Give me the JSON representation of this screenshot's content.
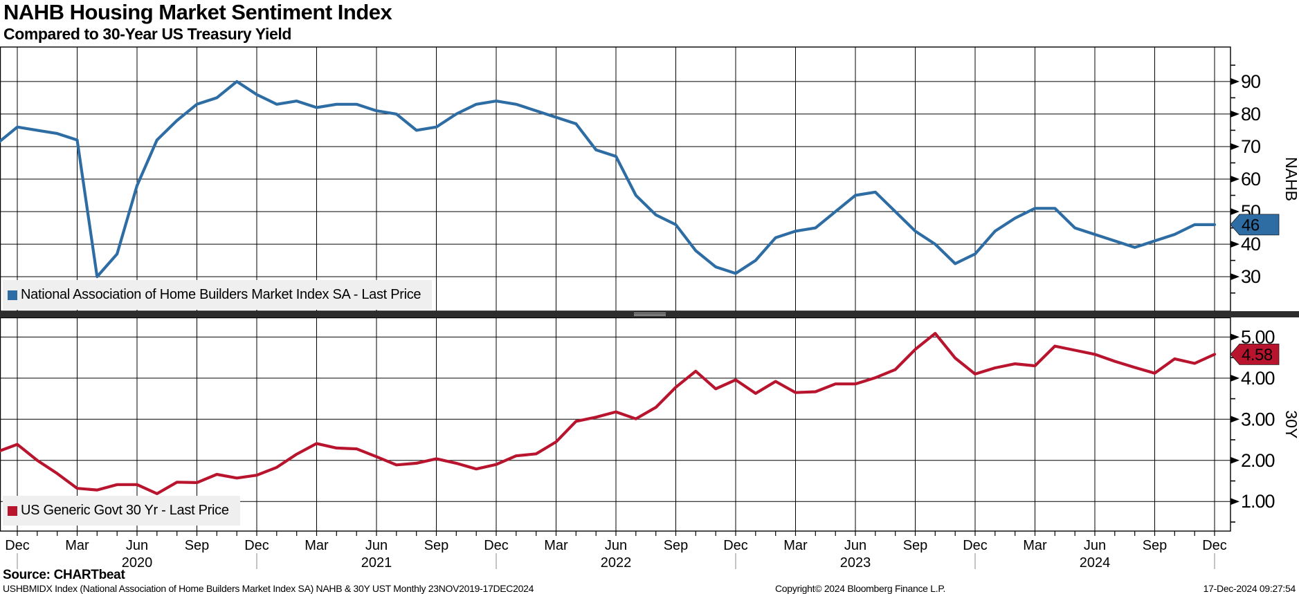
{
  "header": {
    "title": "NAHB Housing Market Sentiment Index",
    "subtitle": "Compared to 30-Year US Treasury Yield"
  },
  "chart_data": [
    {
      "type": "line",
      "panel": "top",
      "legend": "National Association of Home Builders Market Index SA - Last Price",
      "axis_title": "NAHB",
      "color": "#2e6da4",
      "last_label": "46",
      "frequency": "Monthly",
      "x_start": "Nov 2019",
      "x_end": "Dec 2024",
      "ylim": [
        19.4,
        100.6
      ],
      "yticks": [
        {
          "v": 30,
          "label": "30"
        },
        {
          "v": 40,
          "label": "40"
        },
        {
          "v": 50,
          "label": "50"
        },
        {
          "v": 60,
          "label": "60"
        },
        {
          "v": 70,
          "label": "70"
        },
        {
          "v": 80,
          "label": "80"
        },
        {
          "v": 90,
          "label": "90"
        }
      ],
      "minor_ticks": [
        25,
        35,
        45,
        55,
        65,
        75,
        85,
        95
      ],
      "values": [
        71,
        76,
        75,
        74,
        72,
        30,
        37,
        58,
        72,
        78,
        83,
        85,
        90,
        86,
        83,
        84,
        82,
        83,
        83,
        81,
        80,
        75,
        76,
        80,
        83,
        84,
        83,
        81,
        79,
        77,
        69,
        67,
        55,
        49,
        46,
        38,
        33,
        31,
        35,
        42,
        44,
        45,
        50,
        55,
        56,
        50,
        44,
        40,
        34,
        37,
        44,
        48,
        51,
        51,
        45,
        43,
        41,
        39,
        41,
        43,
        46,
        46
      ]
    },
    {
      "type": "line",
      "panel": "bottom",
      "legend": "US Generic Govt 30 Yr - Last Price",
      "axis_title": "30Y",
      "color": "#b8142e",
      "last_label": "4.58",
      "frequency": "Monthly",
      "x_start": "Nov 2019",
      "x_end": "Dec 2024",
      "ylim": [
        0.28,
        5.47
      ],
      "yticks": [
        {
          "v": 1,
          "label": "1.00"
        },
        {
          "v": 2,
          "label": "2.00"
        },
        {
          "v": 3,
          "label": "3.00"
        },
        {
          "v": 4,
          "label": "4.00"
        },
        {
          "v": 5,
          "label": "5.00"
        }
      ],
      "minor_ticks": [
        0.5,
        1.5,
        2.5,
        3.5,
        4.5
      ],
      "values": [
        2.21,
        2.39,
        2.0,
        1.68,
        1.32,
        1.28,
        1.41,
        1.41,
        1.19,
        1.47,
        1.46,
        1.66,
        1.57,
        1.64,
        1.83,
        2.15,
        2.41,
        2.3,
        2.28,
        2.09,
        1.89,
        1.93,
        2.04,
        1.93,
        1.79,
        1.9,
        2.11,
        2.16,
        2.45,
        2.95,
        3.05,
        3.18,
        3.01,
        3.29,
        3.78,
        4.17,
        3.74,
        3.96,
        3.63,
        3.92,
        3.65,
        3.67,
        3.86,
        3.86,
        4.01,
        4.21,
        4.7,
        5.09,
        4.49,
        4.1,
        4.25,
        4.35,
        4.3,
        4.78,
        4.68,
        4.58,
        4.41,
        4.26,
        4.12,
        4.47,
        4.36,
        4.58
      ]
    }
  ],
  "x_axis": {
    "tick_labels": [
      "Dec",
      "Mar",
      "Jun",
      "Sep",
      "Dec",
      "Mar",
      "Jun",
      "Sep",
      "Dec",
      "Mar",
      "Jun",
      "Sep",
      "Dec",
      "Mar",
      "Jun",
      "Sep",
      "Dec",
      "Mar",
      "Jun",
      "Sep",
      "Dec"
    ],
    "year_labels": [
      "2020",
      "2021",
      "2022",
      "2023",
      "2024"
    ]
  },
  "footer": {
    "source": "Source: CHARTbeat",
    "description": "USHBMIDX Index (National Association of Home Builders Market Index SA) NAHB & 30Y UST  Monthly 23NOV2019-17DEC2024",
    "copyright": "Copyright© 2024 Bloomberg Finance L.P.",
    "timestamp": "17-Dec-2024 09:27:54"
  }
}
